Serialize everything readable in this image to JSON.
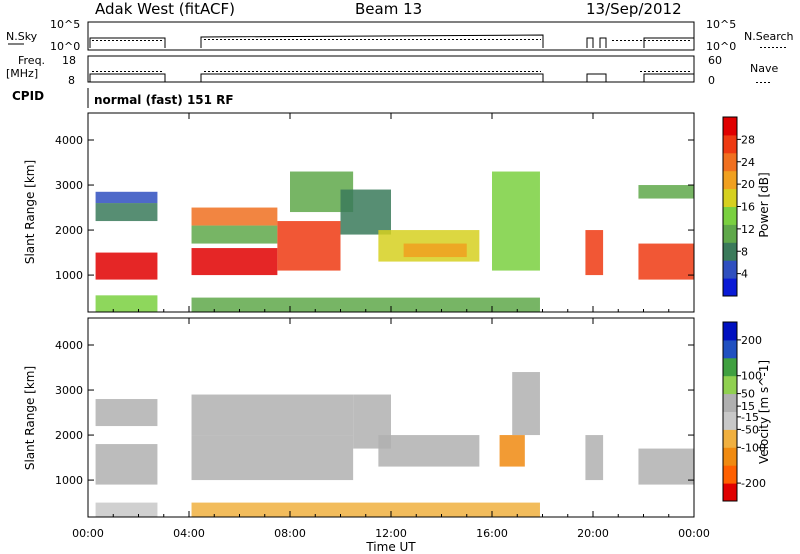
{
  "header": {
    "station": "Adak West (fitACF)",
    "beam": "Beam 13",
    "date": "13/Sep/2012"
  },
  "top_strip": {
    "nsky_label": "N.Sky",
    "nsky_ticks": [
      "10^5",
      "10^0"
    ],
    "nsearch_label": "N.Search",
    "nsearch_ticks": [
      "10^5",
      "10^0"
    ]
  },
  "freq_strip": {
    "freq_label_1": "Freq.",
    "freq_label_2": "[MHz]",
    "freq_ticks": [
      "18",
      "8"
    ],
    "nave_label": "Nave",
    "nave_ticks": [
      "60",
      "0"
    ]
  },
  "cpid": {
    "label": "CPID",
    "mode": "normal (fast) 151 RF"
  },
  "colors": {
    "power": [
      "#0a1bd6",
      "#2f4fbf",
      "#3a7a5a",
      "#5fa84a",
      "#7ad040",
      "#d6d020",
      "#f0a020",
      "#f07020",
      "#ee3a12",
      "#e00000"
    ],
    "velocity": [
      "#e00000",
      "#ff6000",
      "#f08a10",
      "#f0b040",
      "#c8c8c8",
      "#b0b0b0",
      "#90d050",
      "#40a040",
      "#2050c0",
      "#0010c0"
    ]
  },
  "chart_data": [
    {
      "type": "heatmap",
      "name": "power",
      "xlabel": "",
      "ylabel": "Slant Range [km]",
      "xlim": [
        0,
        24
      ],
      "ylim": [
        180,
        4600
      ],
      "yticks": [
        1000,
        2000,
        3000,
        4000
      ],
      "colorbar": {
        "label": "Power [dB]",
        "range": [
          0,
          32
        ],
        "ticks": [
          4,
          8,
          12,
          16,
          20,
          24,
          28
        ]
      },
      "blobs": [
        {
          "t0": 0.3,
          "t1": 2.75,
          "r0": 900,
          "r1": 1500,
          "v": 29
        },
        {
          "t0": 0.3,
          "t1": 2.75,
          "r0": 2200,
          "r1": 2600,
          "v": 9
        },
        {
          "t0": 0.3,
          "t1": 2.75,
          "r0": 2600,
          "r1": 2850,
          "v": 6
        },
        {
          "t0": 0.3,
          "t1": 2.75,
          "r0": 180,
          "r1": 550,
          "v": 15
        },
        {
          "t0": 4.1,
          "t1": 7.5,
          "r0": 1000,
          "r1": 1600,
          "v": 30
        },
        {
          "t0": 4.1,
          "t1": 7.5,
          "r0": 2100,
          "r1": 2500,
          "v": 25
        },
        {
          "t0": 4.1,
          "t1": 7.5,
          "r0": 1700,
          "r1": 2100,
          "v": 10
        },
        {
          "t0": 7.5,
          "t1": 10.0,
          "r0": 1100,
          "r1": 2200,
          "v": 27
        },
        {
          "t0": 8.0,
          "t1": 10.5,
          "r0": 2400,
          "r1": 3300,
          "v": 12
        },
        {
          "t0": 10.0,
          "t1": 12.0,
          "r0": 1900,
          "r1": 2900,
          "v": 9
        },
        {
          "t0": 11.5,
          "t1": 15.5,
          "r0": 1300,
          "r1": 2000,
          "v": 17
        },
        {
          "t0": 12.5,
          "t1": 15.0,
          "r0": 1400,
          "r1": 1700,
          "v": 22
        },
        {
          "t0": 16.0,
          "t1": 17.9,
          "r0": 1100,
          "r1": 3300,
          "v": 13
        },
        {
          "t0": 19.7,
          "t1": 20.4,
          "r0": 1000,
          "r1": 2000,
          "v": 27
        },
        {
          "t0": 21.8,
          "t1": 24.0,
          "r0": 900,
          "r1": 1700,
          "v": 26
        },
        {
          "t0": 21.8,
          "t1": 24.0,
          "r0": 2700,
          "r1": 3000,
          "v": 10
        },
        {
          "t0": 4.1,
          "t1": 17.9,
          "r0": 180,
          "r1": 500,
          "v": 10
        }
      ]
    },
    {
      "type": "heatmap",
      "name": "velocity",
      "xlabel": "Time UT",
      "ylabel": "Slant Range [km]",
      "xlim": [
        0,
        24
      ],
      "ylim": [
        180,
        4600
      ],
      "xticks": [
        "00:00",
        "04:00",
        "08:00",
        "12:00",
        "16:00",
        "20:00",
        "00:00"
      ],
      "yticks": [
        1000,
        2000,
        3000,
        4000
      ],
      "colorbar": {
        "label": "Velocity [m s^-1]",
        "range": [
          -250,
          250
        ],
        "ticks": [
          -200,
          -100,
          -50,
          -15,
          15,
          50,
          100,
          200
        ]
      },
      "blobs": [
        {
          "t0": 0.3,
          "t1": 2.75,
          "r0": 900,
          "r1": 1800,
          "v": 0
        },
        {
          "t0": 0.3,
          "t1": 2.75,
          "r0": 2200,
          "r1": 2800,
          "v": 0
        },
        {
          "t0": 0.3,
          "t1": 2.75,
          "r0": 180,
          "r1": 500,
          "v": -40
        },
        {
          "t0": 4.1,
          "t1": 10.5,
          "r0": 1000,
          "r1": 2000,
          "v": 0
        },
        {
          "t0": 4.1,
          "t1": 10.5,
          "r0": 2000,
          "r1": 2900,
          "v": 0
        },
        {
          "t0": 10.5,
          "t1": 12.0,
          "r0": 1700,
          "r1": 2900,
          "v": 5
        },
        {
          "t0": 11.5,
          "t1": 15.5,
          "r0": 1300,
          "r1": 2000,
          "v": 40
        },
        {
          "t0": 16.3,
          "t1": 17.3,
          "r0": 1300,
          "r1": 2000,
          "v": -150
        },
        {
          "t0": 16.8,
          "t1": 17.9,
          "r0": 2000,
          "r1": 3400,
          "v": 40
        },
        {
          "t0": 19.7,
          "t1": 20.4,
          "r0": 1000,
          "r1": 2000,
          "v": 30
        },
        {
          "t0": 21.8,
          "t1": 24.0,
          "r0": 900,
          "r1": 1700,
          "v": 0
        },
        {
          "t0": 4.1,
          "t1": 17.9,
          "r0": 180,
          "r1": 500,
          "v": -60
        }
      ]
    }
  ]
}
